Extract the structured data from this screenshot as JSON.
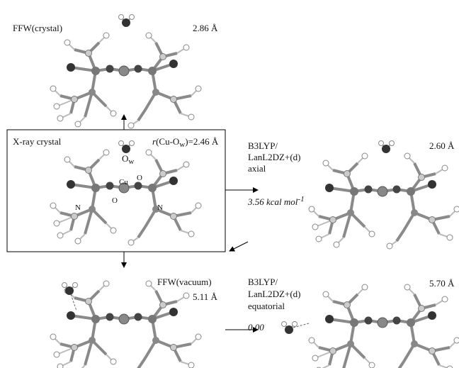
{
  "panels": {
    "ffw_crystal": {
      "title": "FFW(crystal)",
      "distance": "2.86 Å"
    },
    "xray": {
      "title": "X-ray crystal",
      "r_symbol": "r",
      "r_open": "(Cu-O",
      "r_sub": "w",
      "r_close": ")=2.46 Å",
      "water_label": "O",
      "water_sub": "w",
      "atoms": [
        "Cu",
        "O",
        "O",
        "N",
        "N"
      ]
    },
    "axial": {
      "method_line1": "B3LYP/",
      "method_line2": "LanL2DZ+(d)",
      "geometry": "axial",
      "energy": "3.56 kcal mol",
      "energy_sup": "-1",
      "distance": "2.60 Å"
    },
    "ffw_vacuum": {
      "title": "FFW(vacuum)",
      "distance": "5.11 Å"
    },
    "equatorial": {
      "method_line1": "B3LYP/",
      "method_line2": "LanL2DZ+(d)",
      "geometry": "equatorial",
      "energy": "0.00",
      "distance": "5.70 Å"
    }
  }
}
